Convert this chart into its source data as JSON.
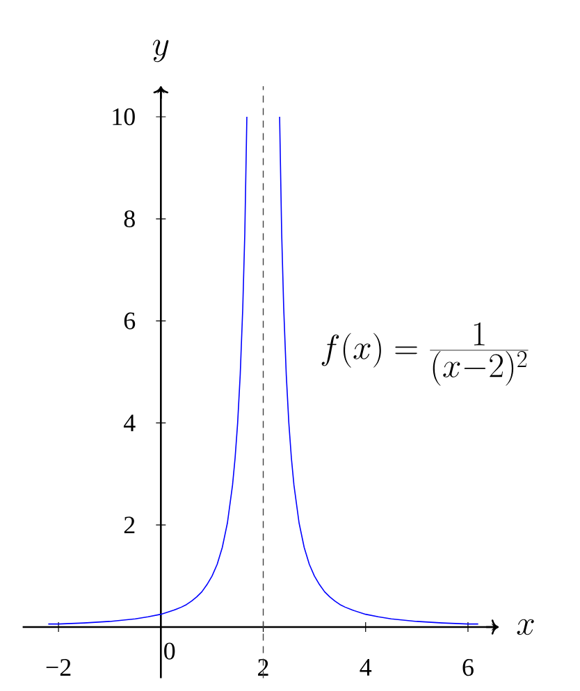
{
  "chart_data": {
    "type": "line",
    "xlabel": "x",
    "ylabel": "y",
    "x": [
      -2.2,
      -2,
      -1.5,
      -1,
      -0.5,
      -0.25,
      0,
      0.25,
      0.4,
      0.5,
      0.6,
      0.7,
      0.8,
      0.9,
      1,
      1.1,
      1.2,
      1.3,
      1.4,
      1.45,
      1.5,
      1.55,
      1.6,
      1.64,
      1.68,
      2,
      2.32,
      2.36,
      2.4,
      2.45,
      2.5,
      2.55,
      2.6,
      2.7,
      2.8,
      2.9,
      3,
      3.1,
      3.2,
      3.3,
      3.4,
      3.5,
      3.6,
      3.75,
      4,
      4.25,
      4.5,
      5,
      5.5,
      6,
      6.2
    ],
    "series": [
      {
        "color": "#0000ff",
        "values": [
          0.06,
          0.06,
          0.08,
          0.11,
          0.16,
          0.2,
          0.25,
          0.33,
          0.39,
          0.44,
          0.51,
          0.59,
          0.69,
          0.83,
          1,
          1.23,
          1.56,
          2.04,
          2.78,
          3.31,
          4,
          4.94,
          6.25,
          7.72,
          10,
          null,
          10,
          7.72,
          6.25,
          4.94,
          4,
          3.31,
          2.78,
          2.04,
          1.56,
          1.23,
          1,
          0.83,
          0.69,
          0.59,
          0.51,
          0.44,
          0.39,
          0.33,
          0.25,
          0.2,
          0.16,
          0.11,
          0.08,
          0.06,
          0.06
        ]
      }
    ],
    "xlim": [
      -2.7,
      6.6
    ],
    "ylim": [
      -1,
      10.6
    ],
    "xticks": [
      {
        "value": -2,
        "label": "−2"
      },
      2,
      4,
      6
    ],
    "yticks": [
      2,
      4,
      6,
      8,
      10
    ],
    "ref_lines": [
      {
        "axis": "x",
        "value": 2,
        "color": "#404040",
        "line_style": "dashed"
      }
    ],
    "annotations": [
      "f(x) = \\frac{1}{(x-2)^2}",
      "0"
    ]
  }
}
